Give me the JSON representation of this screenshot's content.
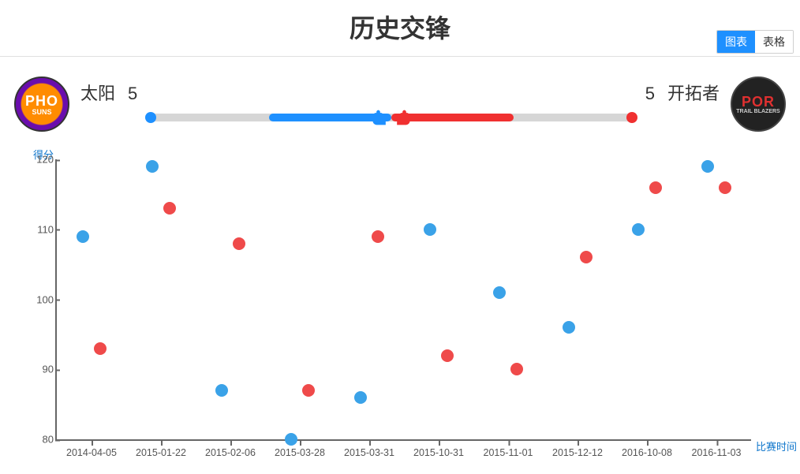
{
  "title": "历史交锋",
  "tabs": {
    "chart": "图表",
    "table": "表格",
    "active": "chart"
  },
  "teams": {
    "left": {
      "name": "太阳",
      "wins": 5,
      "abbr": "PHO",
      "sub": "SUNS",
      "color": "#1e90ff"
    },
    "right": {
      "name": "开拓者",
      "wins": 5,
      "abbr": "POR",
      "sub": "TRAIL BLAZERS",
      "color": "#f03030"
    }
  },
  "bar": {
    "track_color": "#d6d6d6",
    "blue_start_pct": 25,
    "blue_end_pct": 50,
    "red_start_pct": 50,
    "red_end_pct": 75
  },
  "chart": {
    "type": "scatter",
    "y_axis_label": "得分",
    "x_axis_label": "比赛时间",
    "ylim": [
      80,
      120
    ],
    "yticks": [
      80,
      90,
      100,
      110,
      120
    ],
    "ytick_fontsize": 13,
    "xtick_fontsize": 12.5,
    "axis_color": "#666666",
    "label_color": "#1177cc",
    "background_color": "#ffffff",
    "point_radius": 8,
    "x_jitter_pct": 1.2,
    "categories": [
      "2014-04-05",
      "2015-01-22",
      "2015-02-06",
      "2015-03-28",
      "2015-03-31",
      "2015-10-31",
      "2015-11-01",
      "2015-12-12",
      "2016-10-08",
      "2016-11-03"
    ],
    "series": [
      {
        "name": "太阳",
        "color": "#3aa2e8",
        "values": [
          109,
          119,
          87,
          80,
          86,
          110,
          101,
          96,
          110,
          119
        ]
      },
      {
        "name": "开拓者",
        "color": "#ef4a4a",
        "values": [
          93,
          113,
          108,
          87,
          109,
          92,
          90,
          106,
          116,
          116
        ]
      }
    ]
  }
}
